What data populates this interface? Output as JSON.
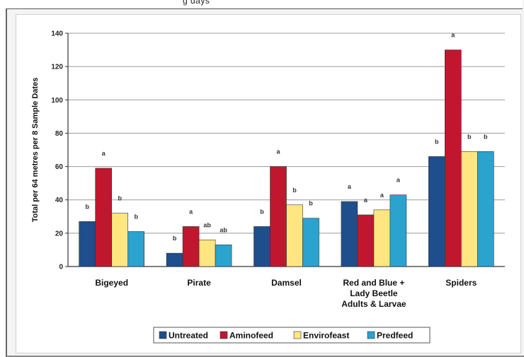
{
  "header_fragment": "g days",
  "chart_data": {
    "type": "bar",
    "title": "",
    "xlabel": "",
    "ylabel": "Total per 64 metres per 8 Sample Dates",
    "ylim": [
      0,
      140
    ],
    "yticks": [
      0,
      20,
      40,
      60,
      80,
      100,
      120,
      140
    ],
    "grid": true,
    "legend_position": "bottom",
    "categories": [
      [
        "Bigeyed"
      ],
      [
        "Pirate"
      ],
      [
        "Damsel"
      ],
      [
        "Red and Blue +",
        "Lady Beetle",
        "Adults & Larvae"
      ],
      [
        "Spiders"
      ]
    ],
    "series": [
      {
        "name": "Untreated",
        "color": "#1f4e8c",
        "values": [
          27,
          8,
          24,
          39,
          66
        ],
        "letters": [
          "b",
          "b",
          "b",
          "a",
          "b"
        ]
      },
      {
        "name": "Aminofeed",
        "color": "#c0172f",
        "values": [
          59,
          24,
          60,
          31,
          130
        ],
        "letters": [
          "a",
          "a",
          "a",
          "a",
          "a"
        ]
      },
      {
        "name": "Envirofeast",
        "color": "#ffe680",
        "values": [
          32,
          16,
          37,
          34,
          69
        ],
        "letters": [
          "b",
          "ab",
          "b",
          "a",
          "b"
        ]
      },
      {
        "name": "Predfeed",
        "color": "#2aa3cf",
        "values": [
          21,
          13,
          29,
          43,
          69
        ],
        "letters": [
          "b",
          "ab",
          "b",
          "a",
          "b"
        ]
      }
    ]
  }
}
